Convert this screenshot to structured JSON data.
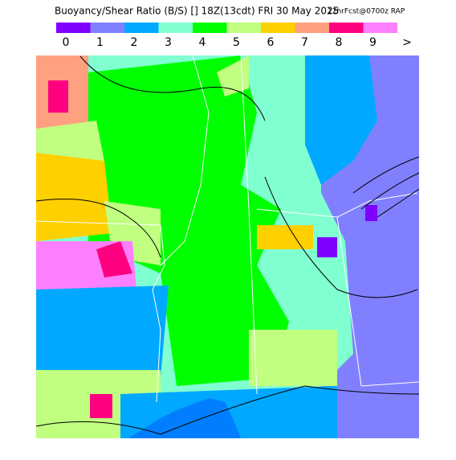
{
  "header": {
    "title": "Buoyancy/Shear Ratio (B/S) [] 18Z(13cdt) FRI 30 May 2025",
    "subtitle": "12hrFcst@0700z RAP"
  },
  "legend": {
    "items": [
      {
        "label": "0",
        "color": "#8000ff"
      },
      {
        "label": "1",
        "color": "#8080ff"
      },
      {
        "label": "2",
        "color": "#00a8ff"
      },
      {
        "label": "3",
        "color": "#80ffd0"
      },
      {
        "label": "4",
        "color": "#00ff00"
      },
      {
        "label": "5",
        "color": "#c0ff80"
      },
      {
        "label": "6",
        "color": "#ffd000"
      },
      {
        "label": "7",
        "color": "#ffa080"
      },
      {
        "label": "8",
        "color": "#ff0080"
      },
      {
        "label": "9",
        "color": "#ff80ff"
      }
    ],
    "more": ">"
  }
}
